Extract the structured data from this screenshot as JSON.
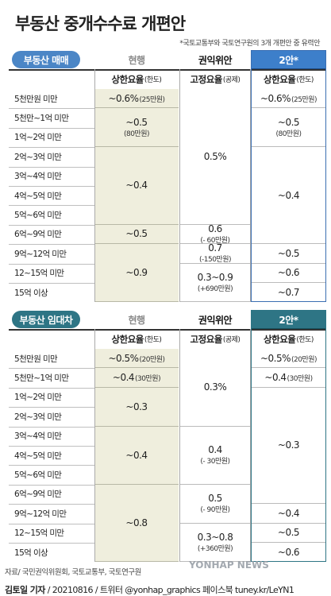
{
  "title": "부동산 중개수수료 개편안",
  "note": "*국토교통부와 국토연구원의 3개 개편안 중 유력안",
  "columns": {
    "current": "현행",
    "kwonik": "권익위안",
    "plan2": "2안*",
    "rate_cap": "상한요율",
    "rate_cap_unit": "(한도)",
    "fixed_rate": "고정요율",
    "fixed_unit": "(공제)"
  },
  "chart_data": {
    "type": "table",
    "sale": {
      "label": "부동산 매매",
      "rows": [
        "5천만원 미만",
        "5천만~1억 미만",
        "1억~2억 미만",
        "2억~3억 미만",
        "3억~4억 미만",
        "4억~5억 미만",
        "5억~6억 미만",
        "6억~9억 미만",
        "9억~12억 미만",
        "12~15억 미만",
        "15억 이상"
      ],
      "current": [
        {
          "value": "~0.6%",
          "sub": "(25만원)"
        },
        {
          "value": "~0.5",
          "sub": "(80만원)"
        },
        {
          "value": "~0.4",
          "sub": ""
        },
        {
          "value": "~0.5",
          "sub": ""
        },
        {
          "value": "~0.9",
          "sub": ""
        }
      ],
      "kwonik": [
        {
          "value": "0.5%",
          "sub": ""
        },
        {
          "value": "0.6",
          "sub": "(- 60만원)"
        },
        {
          "value": "0.7",
          "sub": "(-150만원)"
        },
        {
          "value": "0.3~0.9",
          "sub": "(+690만원)"
        }
      ],
      "plan2": [
        {
          "value": "~0.6%",
          "sub": "(25만원)"
        },
        {
          "value": "~0.5",
          "sub": "(80만원)"
        },
        {
          "value": "~0.4",
          "sub": ""
        },
        {
          "value": "~0.5",
          "sub": ""
        },
        {
          "value": "~0.6",
          "sub": ""
        },
        {
          "value": "~0.7",
          "sub": ""
        }
      ]
    },
    "lease": {
      "label": "부동산 임대차",
      "rows": [
        "5천만원 미만",
        "5천만~1억 미만",
        "1억~2억 미만",
        "2억~3억 미만",
        "3억~4억 미만",
        "4억~5억 미만",
        "5억~6억 미만",
        "6억~9억 미만",
        "9억~12억 미만",
        "12~15억 미만",
        "15억 이상"
      ],
      "current": [
        {
          "value": "~0.5%",
          "sub": "(20만원)"
        },
        {
          "value": "~0.4",
          "sub": "(30만원)"
        },
        {
          "value": "~0.3",
          "sub": ""
        },
        {
          "value": "~0.4",
          "sub": ""
        },
        {
          "value": "~0.8",
          "sub": ""
        }
      ],
      "kwonik": [
        {
          "value": "0.3%",
          "sub": ""
        },
        {
          "value": "0.4",
          "sub": "(- 30만원)"
        },
        {
          "value": "0.5",
          "sub": "(- 90만원)"
        },
        {
          "value": "0.3~0.8",
          "sub": "(+360만원)"
        }
      ],
      "plan2": [
        {
          "value": "~0.5%",
          "sub": "(20만원)"
        },
        {
          "value": "~0.4",
          "sub": "(30만원)"
        },
        {
          "value": "~0.3",
          "sub": ""
        },
        {
          "value": "~0.4",
          "sub": ""
        },
        {
          "value": "~0.5",
          "sub": ""
        },
        {
          "value": "~0.6",
          "sub": ""
        }
      ]
    }
  },
  "source": "자료/ 국민권익위원회, 국토교통부, 국토연구원",
  "credit_name": "김토일 기자",
  "credit_rest": " / 20210816 / 트위터 @yonhap_graphics  페이스북 tuney.kr/LeYN1",
  "watermark": "YONHAP NEWS",
  "colors": {
    "sale_accent": "#4b86c6",
    "lease_accent": "#2e7585",
    "current_bg": "#efeedd"
  }
}
